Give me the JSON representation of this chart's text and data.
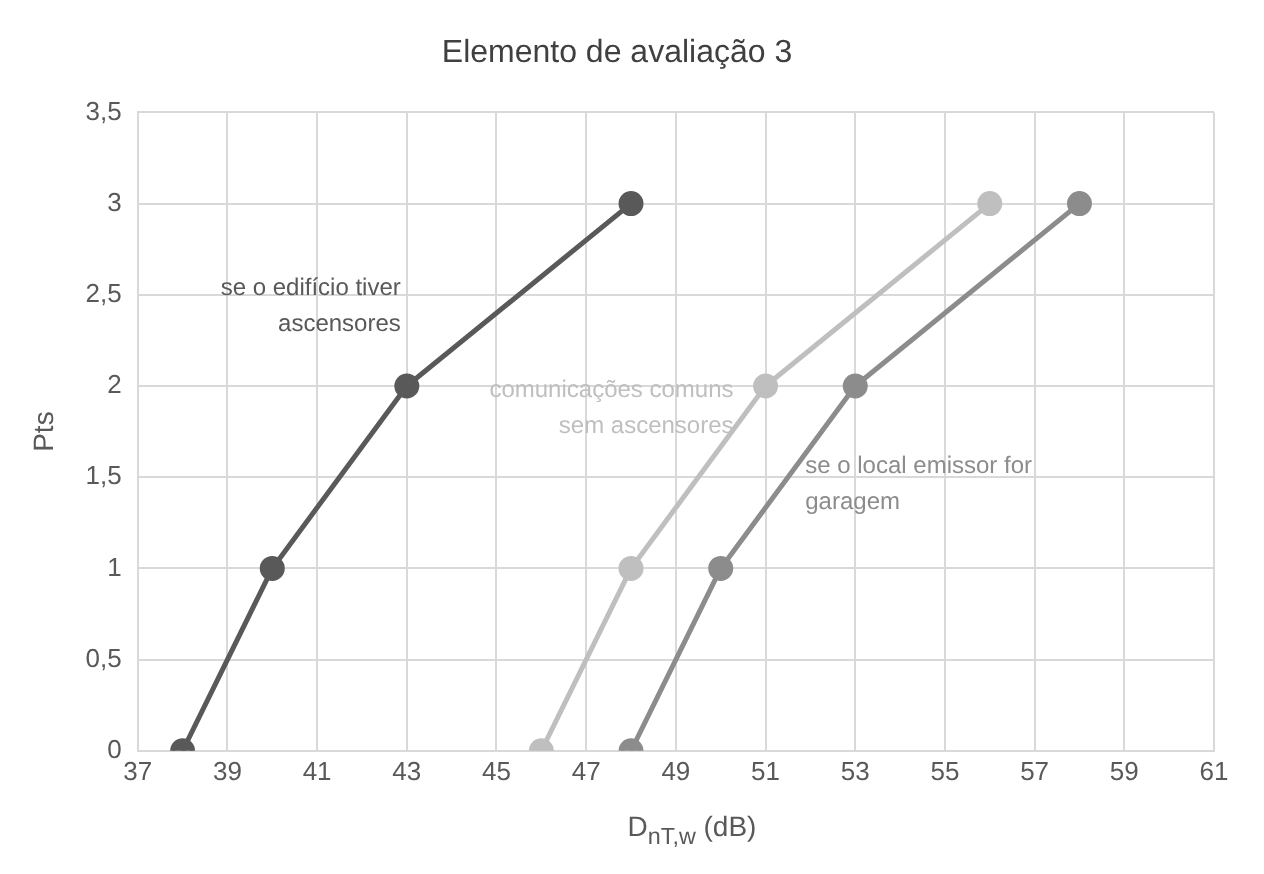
{
  "chart_data": {
    "type": "line",
    "title": "Elemento de avaliação 3",
    "xlabel": "D$_{nT,w}$ (dB)",
    "ylabel": "Pts",
    "xlim": [
      37,
      61
    ],
    "xticks": [
      37,
      39,
      41,
      43,
      45,
      47,
      49,
      51,
      53,
      55,
      57,
      59,
      61
    ],
    "ylim": [
      0,
      3.5
    ],
    "yticks": [
      {
        "value": 0,
        "label": "0"
      },
      {
        "value": 0.5,
        "label": "0,5"
      },
      {
        "value": 1,
        "label": "1"
      },
      {
        "value": 1.5,
        "label": "1,5"
      },
      {
        "value": 2,
        "label": "2"
      },
      {
        "value": 2.5,
        "label": "2,5"
      },
      {
        "value": 3,
        "label": "3"
      },
      {
        "value": 3.5,
        "label": "3,5"
      }
    ],
    "grid": true,
    "legend": false,
    "marker": "circle",
    "line_style": "solid",
    "series": [
      {
        "name": "se o edifício tiver ascensores",
        "color": "#595959",
        "x": [
          38,
          40,
          43,
          48
        ],
        "values": [
          0,
          1,
          2,
          3
        ]
      },
      {
        "name": "comunicações comuns sem ascensores",
        "color": "#bfbfbf",
        "x": [
          46,
          48,
          51,
          56
        ],
        "values": [
          0,
          1,
          2,
          3
        ]
      },
      {
        "name": "se o local emissor for garagem",
        "color": "#8c8c8c",
        "x": [
          48,
          50,
          53,
          58
        ],
        "values": [
          0,
          1,
          2,
          3
        ]
      }
    ]
  }
}
